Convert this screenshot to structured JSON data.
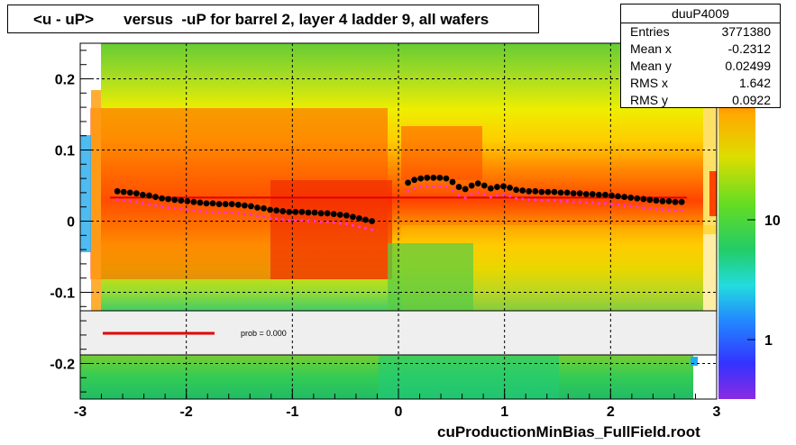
{
  "title": "<u - uP>       versus  -uP for barrel 2, layer 4 ladder 9, all wafers",
  "footer": "cuProductionMinBias_FullField.root",
  "stats": {
    "name": "duuP4009",
    "rows": [
      {
        "key": "Entries",
        "value": "3771380"
      },
      {
        "key": "Mean x",
        "value": "-0.2312"
      },
      {
        "key": "Mean y",
        "value": "0.02499"
      },
      {
        "key": "RMS x",
        "value": "1.642"
      },
      {
        "key": "RMS y",
        "value": "0.0922"
      }
    ]
  },
  "legend": {
    "fit_label": "prob = 0.000"
  },
  "colors": {
    "fit_line": "#e00000",
    "profile_points": "#000000",
    "magenta_points": "#ff33cc"
  },
  "chart_data": {
    "type": "heatmap",
    "xlim": [
      -3,
      3
    ],
    "ylim": [
      -0.25,
      0.25
    ],
    "x_ticks": [
      -3,
      -2,
      -1,
      0,
      1,
      2,
      3
    ],
    "y_ticks": [
      -0.2,
      -0.1,
      0,
      0.1,
      0.2
    ],
    "colorbar": {
      "scale": "log",
      "ticks": [
        1,
        10
      ]
    },
    "grid": true,
    "profile": {
      "x": [
        -2.65,
        -2.59,
        -2.53,
        -2.47,
        -2.41,
        -2.35,
        -2.29,
        -2.23,
        -2.17,
        -2.11,
        -2.05,
        -1.99,
        -1.93,
        -1.87,
        -1.81,
        -1.75,
        -1.69,
        -1.63,
        -1.57,
        -1.51,
        -1.45,
        -1.39,
        -1.33,
        -1.27,
        -1.21,
        -1.15,
        -1.09,
        -1.03,
        -0.97,
        -0.91,
        -0.85,
        -0.79,
        -0.73,
        -0.67,
        -0.61,
        -0.55,
        -0.49,
        -0.43,
        -0.37,
        -0.31,
        -0.25,
        0.09,
        0.15,
        0.21,
        0.27,
        0.33,
        0.39,
        0.45,
        0.51,
        0.57,
        0.63,
        0.69,
        0.75,
        0.81,
        0.87,
        0.93,
        0.99,
        1.05,
        1.11,
        1.17,
        1.23,
        1.29,
        1.35,
        1.41,
        1.47,
        1.53,
        1.59,
        1.65,
        1.71,
        1.77,
        1.83,
        1.89,
        1.95,
        2.01,
        2.07,
        2.13,
        2.19,
        2.25,
        2.31,
        2.37,
        2.43,
        2.49,
        2.55,
        2.61,
        2.67
      ],
      "y": [
        0.042,
        0.041,
        0.04,
        0.039,
        0.037,
        0.036,
        0.034,
        0.032,
        0.031,
        0.03,
        0.029,
        0.028,
        0.027,
        0.026,
        0.025,
        0.025,
        0.024,
        0.024,
        0.024,
        0.023,
        0.022,
        0.021,
        0.019,
        0.018,
        0.016,
        0.015,
        0.014,
        0.013,
        0.013,
        0.013,
        0.012,
        0.012,
        0.011,
        0.011,
        0.01,
        0.009,
        0.008,
        0.006,
        0.004,
        0.002,
        0.0,
        0.054,
        0.058,
        0.06,
        0.061,
        0.061,
        0.061,
        0.06,
        0.055,
        0.048,
        0.045,
        0.05,
        0.053,
        0.05,
        0.046,
        0.048,
        0.049,
        0.047,
        0.044,
        0.043,
        0.042,
        0.042,
        0.041,
        0.041,
        0.041,
        0.04,
        0.04,
        0.039,
        0.039,
        0.038,
        0.038,
        0.037,
        0.037,
        0.036,
        0.035,
        0.034,
        0.033,
        0.032,
        0.031,
        0.03,
        0.029,
        0.028,
        0.028,
        0.027,
        0.027
      ]
    },
    "fit": {
      "y": 0.033
    }
  }
}
